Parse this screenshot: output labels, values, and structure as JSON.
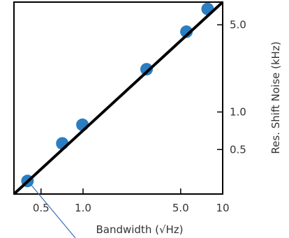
{
  "chart_data": {
    "type": "scatter",
    "xlabel": "Bandwidth (√Hz)",
    "ylabel": "Res. Shift Noise (kHz)",
    "x_scale": "log",
    "y_scale": "log",
    "xlim": [
      0.32,
      10
    ],
    "ylim": [
      0.22,
      7.6
    ],
    "x_ticks": [
      {
        "value": 0.5,
        "label": "0.5"
      },
      {
        "value": 1.0,
        "label": "1.0"
      },
      {
        "value": 5.0,
        "label": "5.0"
      },
      {
        "value": 10,
        "label": "10"
      }
    ],
    "y_ticks": [
      {
        "value": 0.5,
        "label": "0.5"
      },
      {
        "value": 1.0,
        "label": "1.0"
      },
      {
        "value": 5.0,
        "label": "5.0"
      }
    ],
    "y_axis_position": "right",
    "grid": false,
    "series": [
      {
        "type": "scatter",
        "color": "#2a7ec1",
        "points": [
          {
            "x": 0.4,
            "y": 0.28
          },
          {
            "x": 0.71,
            "y": 0.56
          },
          {
            "x": 0.99,
            "y": 0.79
          },
          {
            "x": 2.85,
            "y": 2.2
          },
          {
            "x": 5.5,
            "y": 4.4
          },
          {
            "x": 7.8,
            "y": 6.7
          }
        ]
      },
      {
        "type": "line",
        "color": "#000000",
        "points": [
          {
            "x": 0.32,
            "y": 0.22
          },
          {
            "x": 10,
            "y": 7.6
          }
        ]
      }
    ],
    "annotation_line_color": "#3a6fb0"
  }
}
